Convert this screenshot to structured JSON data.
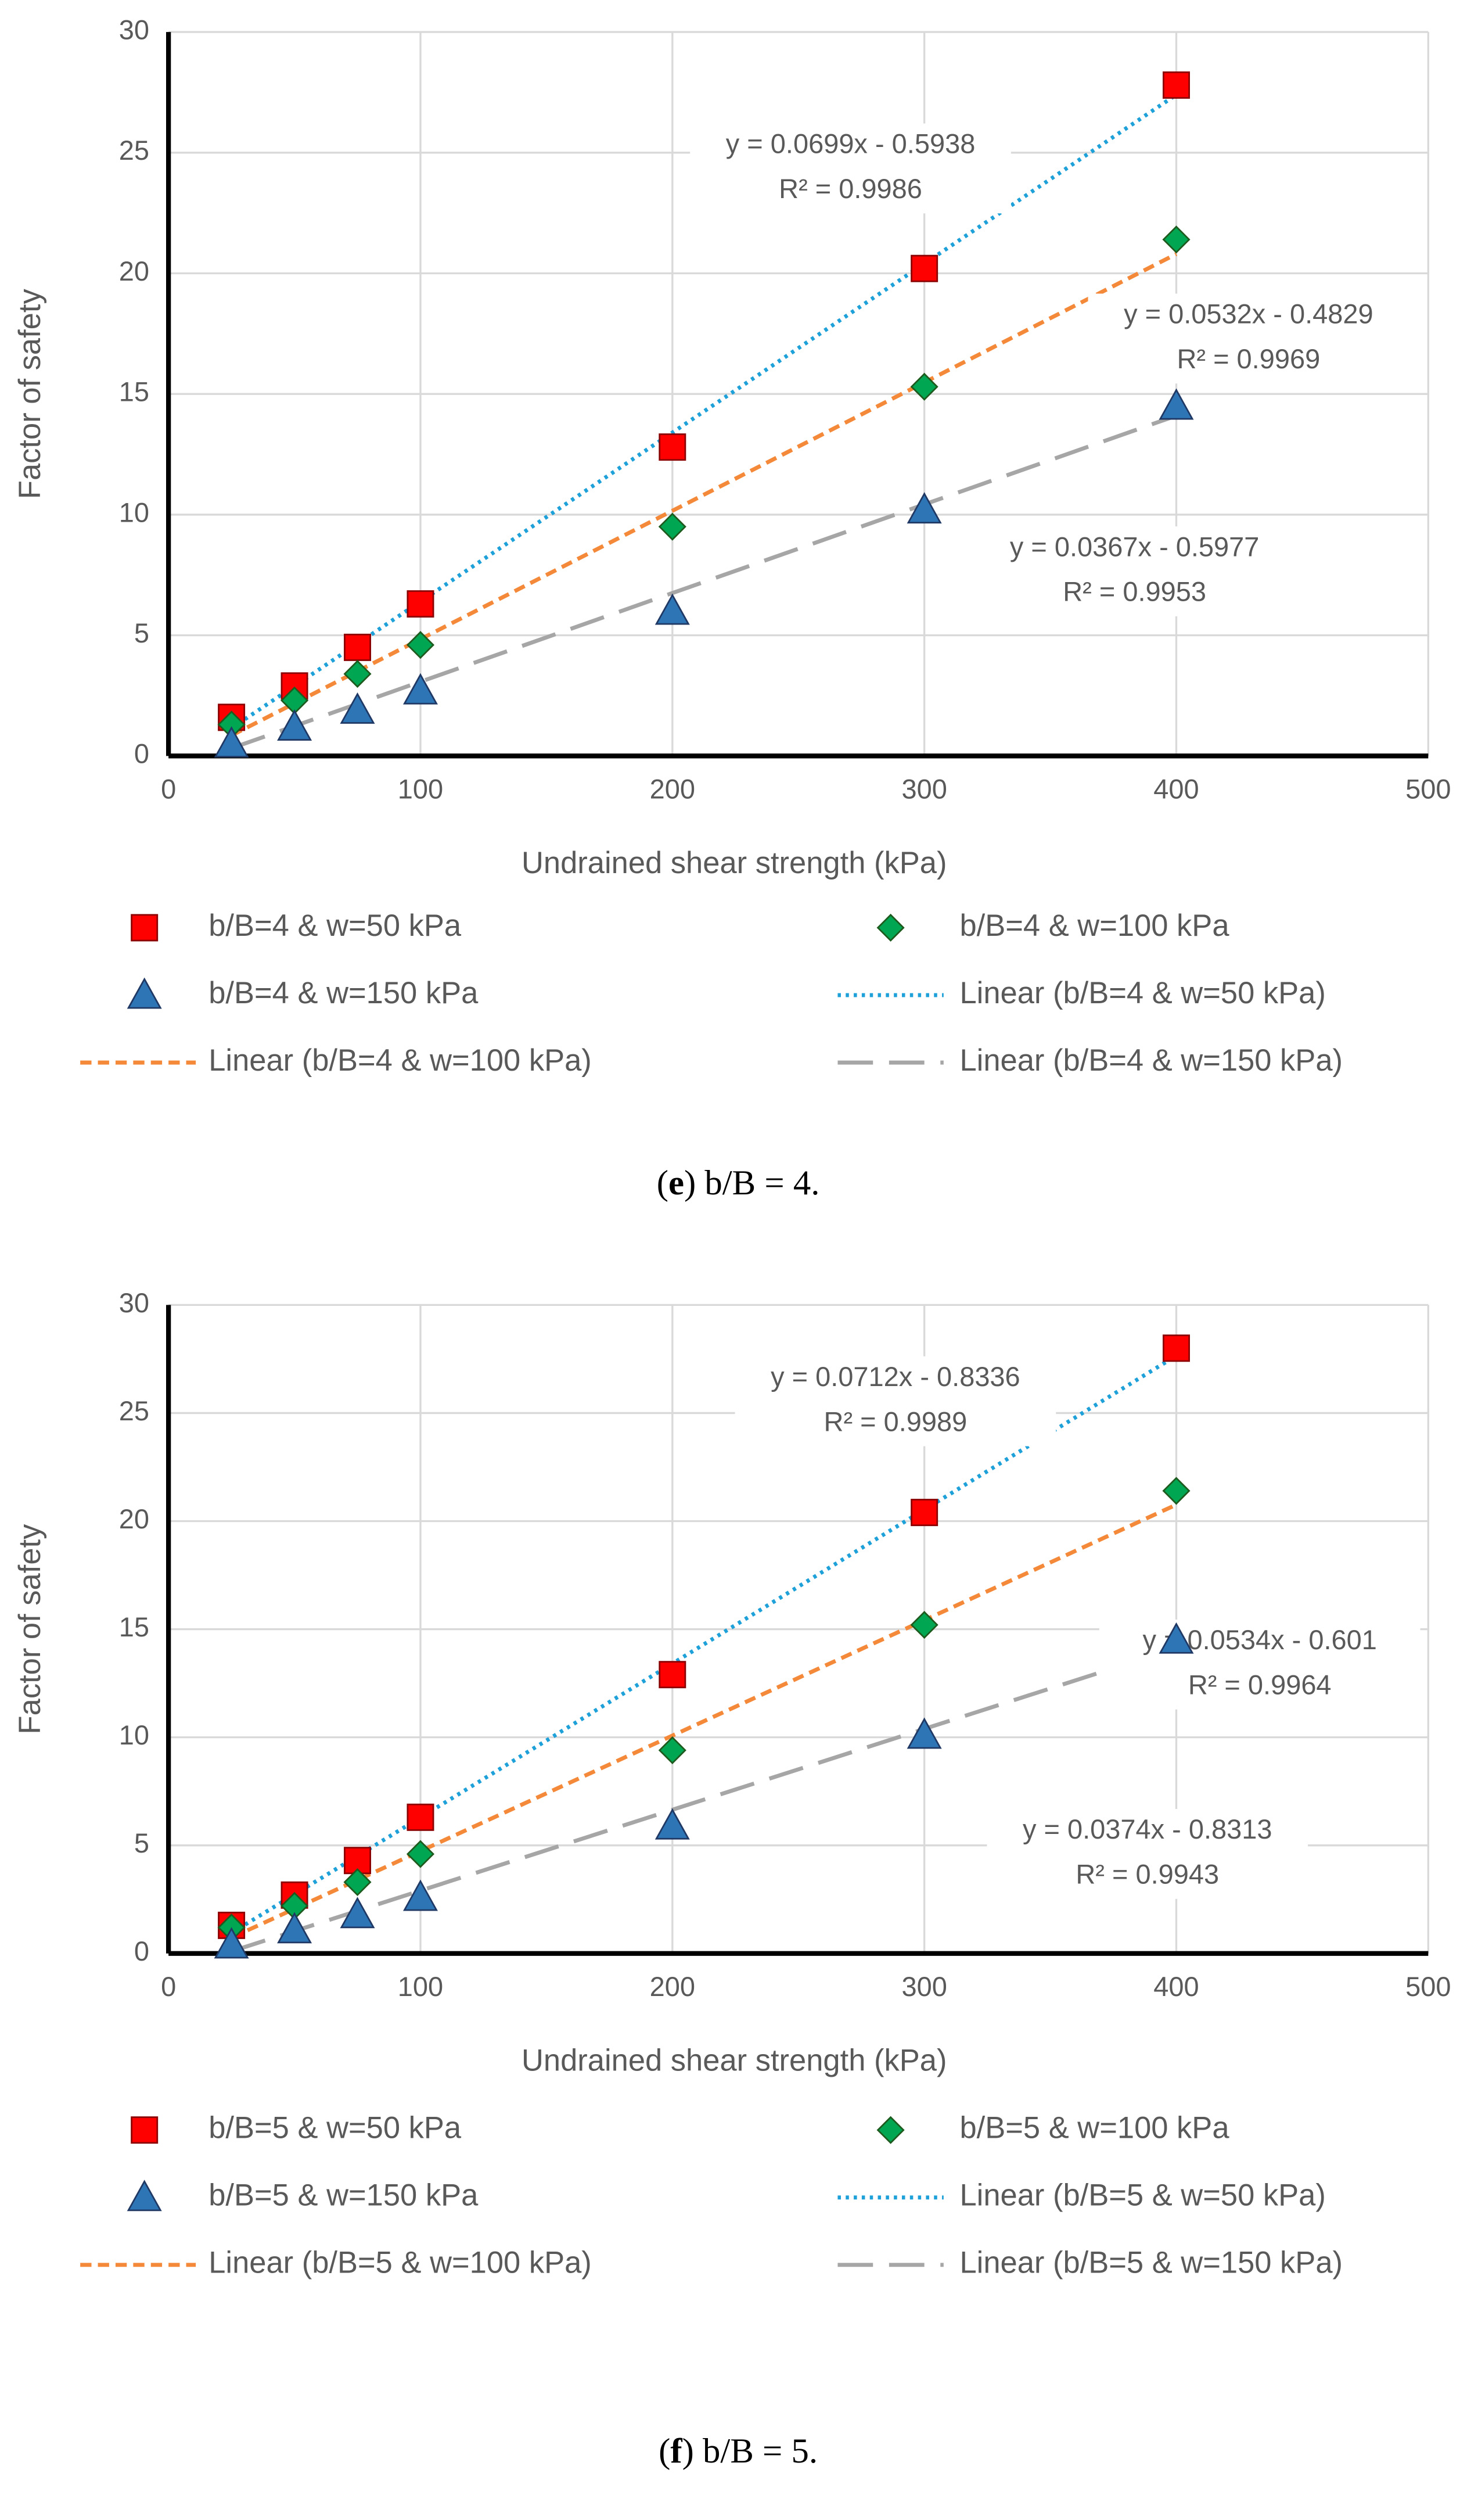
{
  "chart_data": [
    {
      "type": "scatter",
      "x_label": "Undrained shear strength (kPa)",
      "y_label": "Factor of safety",
      "caption": [
        "(",
        "e",
        ") b/B = 4."
      ],
      "x": [
        25,
        50,
        75,
        100,
        200,
        300,
        400
      ],
      "xlim": [
        0,
        500
      ],
      "xticks": [
        0,
        100,
        200,
        300,
        400,
        500
      ],
      "ylim": [
        0,
        30
      ],
      "yticks": [
        0,
        5,
        10,
        15,
        20,
        25,
        30
      ],
      "grid": true,
      "series": [
        {
          "name": "b/B=4 & w=50 kPa",
          "color": "#ff0000",
          "marker": "square",
          "values": [
            1.6,
            2.9,
            4.5,
            6.3,
            12.8,
            20.2,
            27.8
          ]
        },
        {
          "name": "b/B=4 & w=100 kPa",
          "color": "#00a651",
          "marker": "diamond",
          "values": [
            1.3,
            2.3,
            3.4,
            4.6,
            9.5,
            15.3,
            21.4
          ]
        },
        {
          "name": "b/B=4 & w=150 kPa",
          "color": "#2e75b6",
          "marker": "triangle",
          "values": [
            0.5,
            1.2,
            1.9,
            2.7,
            6.0,
            10.2,
            14.5
          ]
        },
        {
          "name": "Linear (b/B=4 & w=50 kPa)",
          "color": "#1ea0d8",
          "line": "dotted",
          "x": [
            25,
            400
          ],
          "values": [
            1.15,
            27.4
          ]
        },
        {
          "name": "Linear (b/B=4 & w=100 kPa)",
          "color": "#f4893a",
          "line": "dashed",
          "x": [
            25,
            400
          ],
          "values": [
            0.85,
            20.8
          ]
        },
        {
          "name": "Linear (b/B=4 & w=150 kPa)",
          "color": "#a6a6a6",
          "line": "longdash",
          "x": [
            25,
            400
          ],
          "values": [
            0.32,
            14.1
          ]
        }
      ],
      "annotations": [
        [
          "y = 0.0699x - 0.5938",
          "R² = 0.9986"
        ],
        [
          "y = 0.0532x - 0.4829",
          "R² = 0.9969"
        ],
        [
          "y = 0.0367x - 0.5977",
          "R² = 0.9953"
        ]
      ]
    },
    {
      "type": "scatter",
      "x_label": "Undrained shear strength (kPa)",
      "y_label": "Factor of safety",
      "caption": [
        "(",
        "f",
        ") b/B = 5."
      ],
      "x": [
        25,
        50,
        75,
        100,
        200,
        300,
        400
      ],
      "xlim": [
        0,
        500
      ],
      "xticks": [
        0,
        100,
        200,
        300,
        400,
        500
      ],
      "ylim": [
        0,
        30
      ],
      "yticks": [
        0,
        5,
        10,
        15,
        20,
        25,
        30
      ],
      "grid": true,
      "series": [
        {
          "name": "b/B=5 & w=50 kPa",
          "color": "#ff0000",
          "marker": "square",
          "values": [
            1.3,
            2.7,
            4.3,
            6.3,
            12.9,
            20.4,
            28.0
          ]
        },
        {
          "name": "b/B=5 & w=100 kPa",
          "color": "#00a651",
          "marker": "diamond",
          "values": [
            1.2,
            2.2,
            3.3,
            4.6,
            9.4,
            15.2,
            21.4
          ]
        },
        {
          "name": "b/B=5 & w=150 kPa",
          "color": "#2e75b6",
          "marker": "triangle",
          "values": [
            0.4,
            1.1,
            1.8,
            2.6,
            5.9,
            10.1,
            14.5
          ]
        },
        {
          "name": "Linear (b/B=5 & w=50 kPa)",
          "color": "#1ea0d8",
          "line": "dotted",
          "x": [
            25,
            400
          ],
          "values": [
            0.95,
            27.65
          ]
        },
        {
          "name": "Linear (b/B=5 & w=100 kPa)",
          "color": "#f4893a",
          "line": "dashed",
          "x": [
            25,
            400
          ],
          "values": [
            0.73,
            20.76
          ]
        },
        {
          "name": "Linear (b/B=5 & w=150 kPa)",
          "color": "#a6a6a6",
          "line": "longdash",
          "x": [
            25,
            400
          ],
          "values": [
            0.1,
            14.13
          ]
        }
      ],
      "annotations": [
        [
          "y = 0.0712x - 0.8336",
          "R² = 0.9989"
        ],
        [
          "y = 0.0534x - 0.601",
          "R² = 0.9964"
        ],
        [
          "y = 0.0374x - 0.8313",
          "R² = 0.9943"
        ]
      ]
    }
  ]
}
